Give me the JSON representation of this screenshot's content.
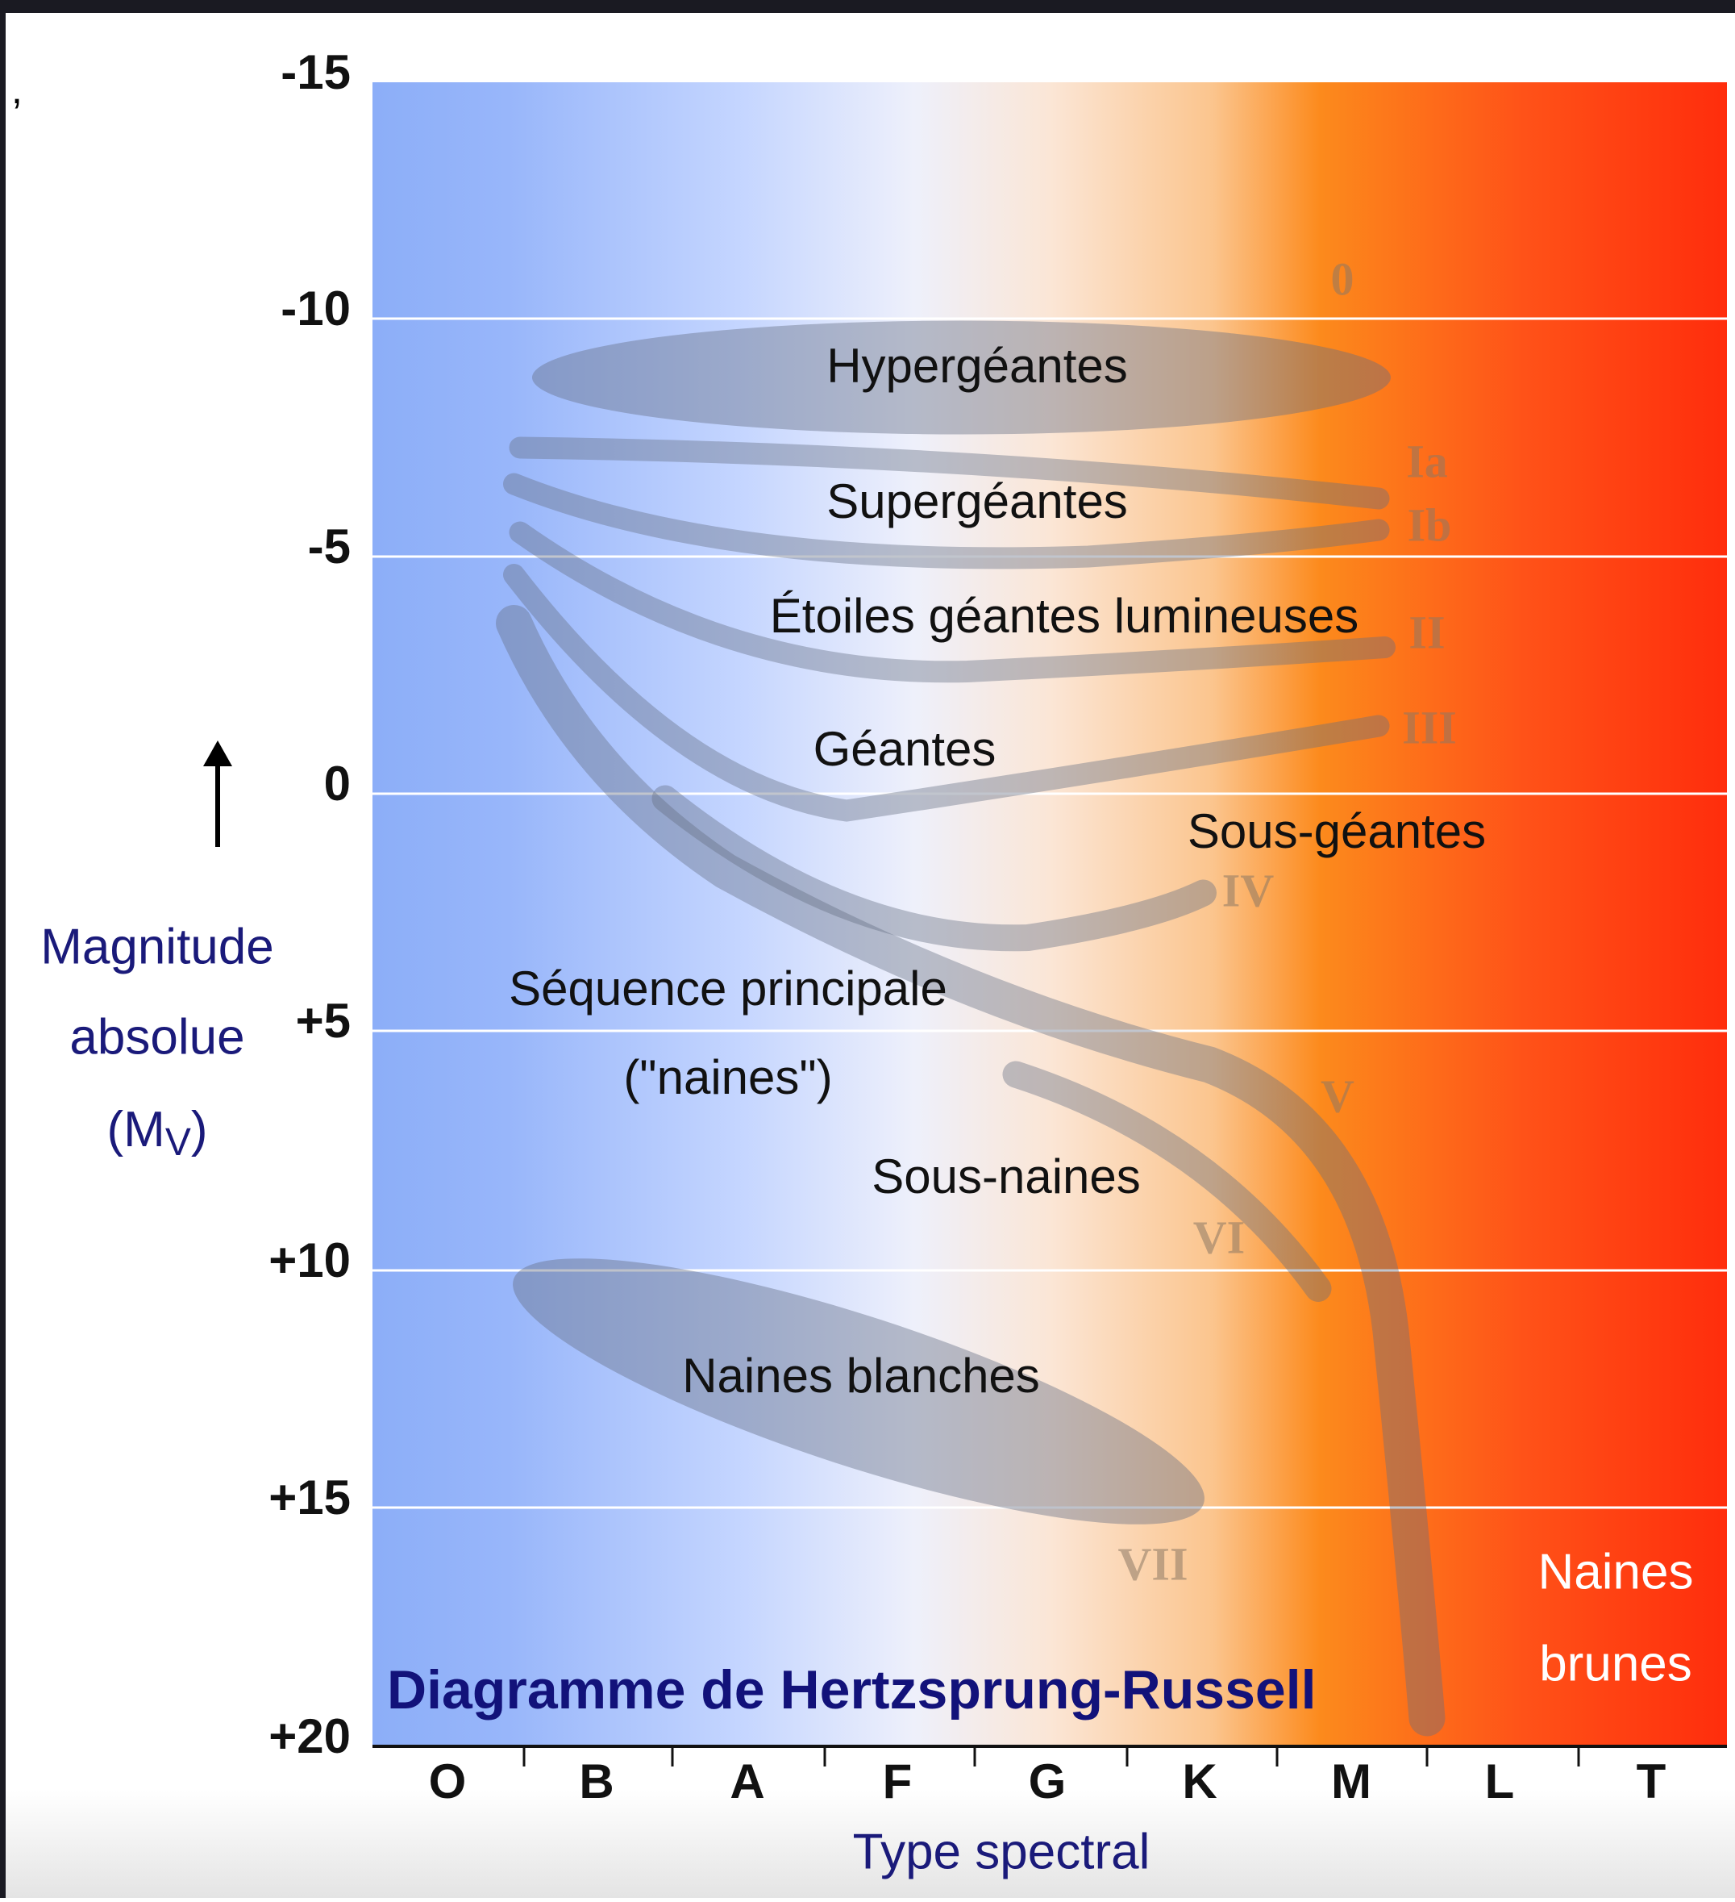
{
  "stray_mark": ",",
  "title": "Diagramme de Hertzsprung-Russell",
  "y_axis": {
    "label_lines": [
      "Magnitude",
      "absolue"
    ],
    "symbol": [
      "(M",
      "V",
      ")"
    ],
    "ticks": [
      "-15",
      "-10",
      "-5",
      "0",
      "+5",
      "+10",
      "+15",
      "+20"
    ]
  },
  "x_axis": {
    "label": "Type spectral",
    "categories": [
      "O",
      "B",
      "A",
      "F",
      "G",
      "K",
      "M",
      "L",
      "T"
    ]
  },
  "regions": [
    "Hypergéantes",
    "Supergéantes",
    "Étoiles géantes lumineuses",
    "Géantes",
    "Sous-géantes",
    "Séquence principale",
    "(\"naines\")",
    "Sous-naines",
    "Naines blanches"
  ],
  "luminosity_classes": [
    "0",
    "Ia",
    "Ib",
    "II",
    "III",
    "IV",
    "V",
    "VI",
    "VII"
  ],
  "brown_dwarfs": [
    "Naines",
    "brunes"
  ]
}
